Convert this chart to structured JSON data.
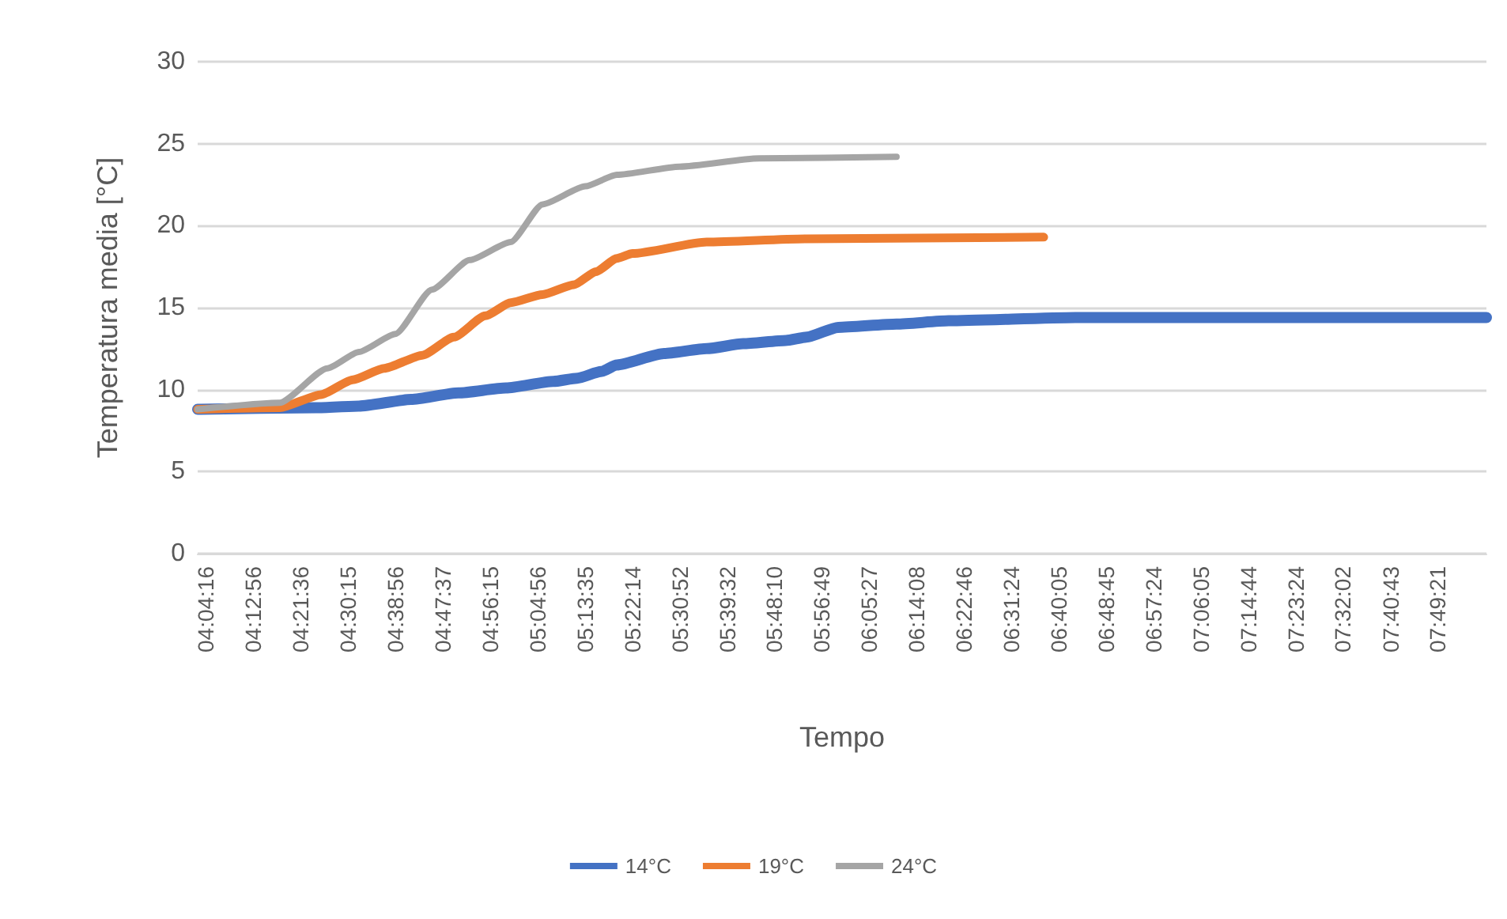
{
  "chart_data": {
    "type": "line",
    "xlabel": "Tempo",
    "ylabel": "Temperatura media [°C]",
    "xlim": [
      4.047,
      7.971
    ],
    "xticks": [
      {
        "value": 4.0711,
        "label": "04:04:16"
      },
      {
        "value": 4.2156,
        "label": "04:12:56"
      },
      {
        "value": 4.36,
        "label": "04:21:36"
      },
      {
        "value": 4.5042,
        "label": "04:30:15"
      },
      {
        "value": 4.6489,
        "label": "04:38:56"
      },
      {
        "value": 4.7936,
        "label": "04:47:37"
      },
      {
        "value": 4.9375,
        "label": "04:56:15"
      },
      {
        "value": 5.0822,
        "label": "05:04:56"
      },
      {
        "value": 5.2264,
        "label": "05:13:35"
      },
      {
        "value": 5.3706,
        "label": "05:22:14"
      },
      {
        "value": 5.5144,
        "label": "05:30:52"
      },
      {
        "value": 5.6589,
        "label": "05:39:32"
      },
      {
        "value": 5.8028,
        "label": "05:48:10"
      },
      {
        "value": 5.9469,
        "label": "05:56:49"
      },
      {
        "value": 6.0908,
        "label": "06:05:27"
      },
      {
        "value": 6.2356,
        "label": "06:14:08"
      },
      {
        "value": 6.3794,
        "label": "06:22:46"
      },
      {
        "value": 6.5233,
        "label": "06:31:24"
      },
      {
        "value": 6.6681,
        "label": "06:40:05"
      },
      {
        "value": 6.8125,
        "label": "06:48:45"
      },
      {
        "value": 6.9567,
        "label": "06:57:24"
      },
      {
        "value": 7.1014,
        "label": "07:06:05"
      },
      {
        "value": 7.2456,
        "label": "07:14:44"
      },
      {
        "value": 7.39,
        "label": "07:23:24"
      },
      {
        "value": 7.5339,
        "label": "07:32:02"
      },
      {
        "value": 7.6786,
        "label": "07:40:43"
      },
      {
        "value": 7.8225,
        "label": "07:49:21"
      }
    ],
    "ylim": [
      0,
      30
    ],
    "yticks": [
      0,
      5,
      10,
      15,
      20,
      25,
      30
    ],
    "grid": "y",
    "legend": "bottom",
    "marker": "none",
    "line_style": "solid",
    "series": [
      {
        "name": "14°C",
        "color": "#4472c4",
        "x": [
          4.047,
          4.408,
          4.538,
          4.697,
          4.841,
          4.986,
          5.13,
          5.203,
          5.275,
          5.323,
          5.467,
          5.597,
          5.708,
          5.838,
          5.901,
          5.997,
          6.175,
          6.334,
          6.719,
          7.104,
          7.971
        ],
        "values": [
          8.8,
          8.9,
          9.0,
          9.4,
          9.8,
          10.1,
          10.5,
          10.7,
          11.1,
          11.5,
          12.2,
          12.5,
          12.8,
          13.0,
          13.2,
          13.8,
          14.0,
          14.2,
          14.4,
          14.4,
          14.4
        ]
      },
      {
        "name": "19°C",
        "color": "#ed7d31",
        "x": [
          4.047,
          4.297,
          4.423,
          4.519,
          4.615,
          4.731,
          4.827,
          4.923,
          5.0,
          5.097,
          5.193,
          5.26,
          5.323,
          5.371,
          5.597,
          5.901,
          6.623
        ],
        "values": [
          8.8,
          8.9,
          9.7,
          10.6,
          11.3,
          12.1,
          13.2,
          14.5,
          15.3,
          15.8,
          16.4,
          17.2,
          18.0,
          18.3,
          19.0,
          19.2,
          19.3
        ]
      },
      {
        "name": "24°C",
        "color": "#a5a5a5",
        "x": [
          4.047,
          4.297,
          4.442,
          4.538,
          4.649,
          4.76,
          4.875,
          5.0,
          5.097,
          5.227,
          5.323,
          5.515,
          5.756,
          6.175
        ],
        "values": [
          8.8,
          9.2,
          11.3,
          12.3,
          13.4,
          16.1,
          17.9,
          19.0,
          21.3,
          22.4,
          23.1,
          23.6,
          24.1,
          24.2
        ]
      }
    ]
  }
}
